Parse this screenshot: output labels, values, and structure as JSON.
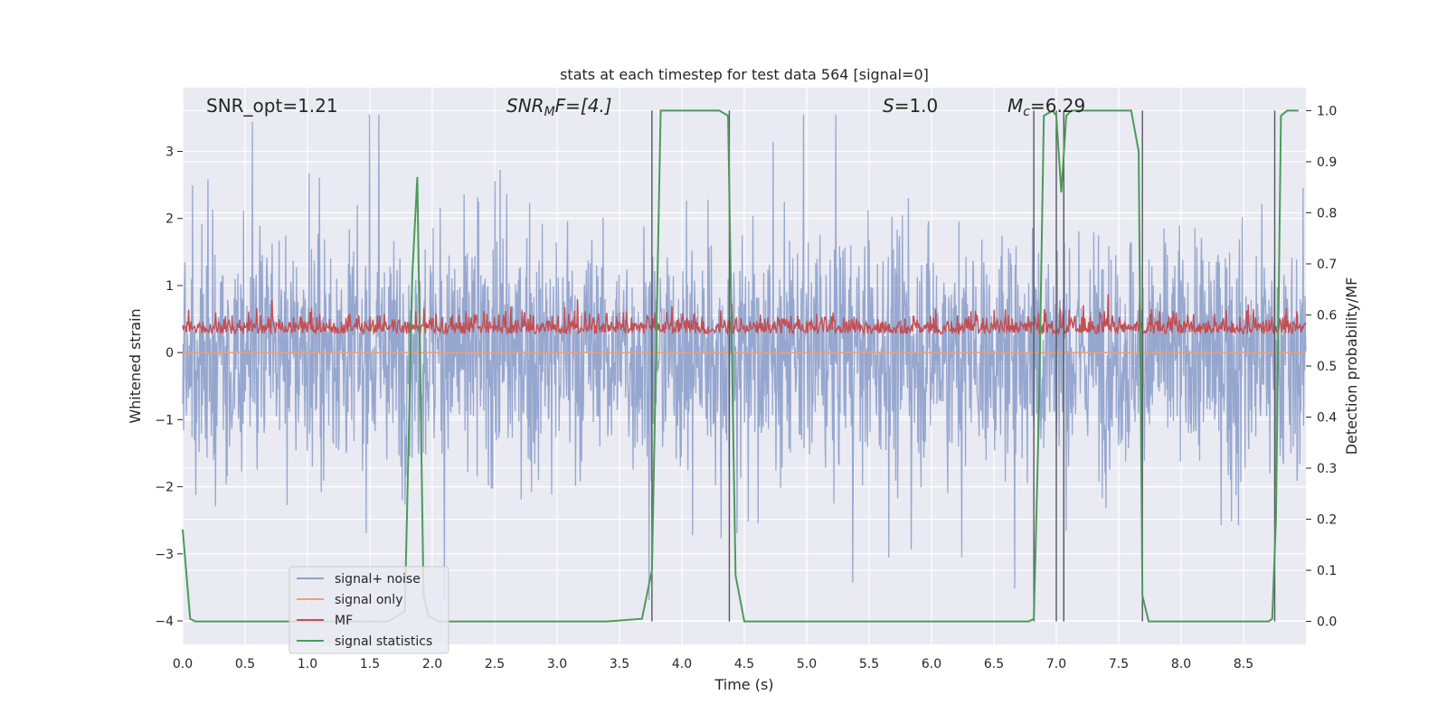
{
  "chart_data": {
    "type": "line",
    "title": "stats at each timestep for test data 564 [signal=0]",
    "xlabel": "Time (s)",
    "ylabel_left": "Whitened strain",
    "ylabel_right": "Detection probability/MF",
    "xlim": [
      0.0,
      9.0
    ],
    "ylim_left": [
      -4.35,
      3.95
    ],
    "ylim_right": [
      -0.045,
      1.045
    ],
    "xticks": [
      "0.0",
      "0.5",
      "1.0",
      "1.5",
      "2.0",
      "2.5",
      "3.0",
      "3.5",
      "4.0",
      "4.5",
      "5.0",
      "5.5",
      "6.0",
      "6.5",
      "7.0",
      "7.5",
      "8.0",
      "8.5"
    ],
    "xtick_values": [
      0.0,
      0.5,
      1.0,
      1.5,
      2.0,
      2.5,
      3.0,
      3.5,
      4.0,
      4.5,
      5.0,
      5.5,
      6.0,
      6.5,
      7.0,
      7.5,
      8.0,
      8.5
    ],
    "yticks_left": [
      "−4",
      "−3",
      "−2",
      "−1",
      "0",
      "1",
      "2",
      "3"
    ],
    "ytick_values_left": [
      -4,
      -3,
      -2,
      -1,
      0,
      1,
      2,
      3
    ],
    "yticks_right": [
      "0.0",
      "0.1",
      "0.2",
      "0.3",
      "0.4",
      "0.5",
      "0.6",
      "0.7",
      "0.8",
      "0.9",
      "1.0"
    ],
    "ytick_values_right": [
      0.0,
      0.1,
      0.2,
      0.3,
      0.4,
      0.5,
      0.6,
      0.7,
      0.8,
      0.9,
      1.0
    ],
    "grid": true,
    "legend_position": "lower-left",
    "annotations": {
      "snr_opt": "SNR_opt=1.21",
      "snr_mf_main": "SNR",
      "snr_mf_sub": "M",
      "snr_mf_rest": "F=[4.]",
      "s_main": "S",
      "s_rest": "=1.0",
      "mc_main": "M",
      "mc_sub": "c",
      "mc_rest": "=6.29"
    },
    "series": [
      {
        "name": "signal+ noise",
        "color": "#8da0cb",
        "noise_band": [
          -1.6,
          1.8
        ],
        "peak_range": [
          -4.0,
          3.55
        ]
      },
      {
        "name": "signal only",
        "color": "#e8a07a",
        "values_constant": 0.0
      },
      {
        "name": "MF",
        "color": "#c44e52",
        "band": [
          0.0,
          0.9
        ]
      },
      {
        "name": "signal statistics",
        "color": "#4c9a5a",
        "axis": "right",
        "x": [
          0.0,
          0.06,
          0.1,
          0.2,
          0.6,
          1.2,
          1.65,
          1.78,
          1.84,
          1.88,
          1.93,
          1.97,
          2.05,
          3.4,
          3.68,
          3.76,
          3.83,
          4.3,
          4.37,
          4.43,
          4.5,
          6.78,
          6.82,
          6.86,
          6.9,
          6.97,
          7.0,
          7.04,
          7.08,
          7.12,
          7.2,
          7.6,
          7.66,
          7.69,
          7.74,
          8.7,
          8.73,
          8.76,
          8.8,
          8.85,
          8.94
        ],
        "y": [
          0.18,
          0.005,
          0.0,
          0.0,
          0.0,
          0.0,
          0.0,
          0.02,
          0.68,
          0.87,
          0.05,
          0.01,
          0.0,
          0.0,
          0.005,
          0.1,
          1.0,
          1.0,
          0.99,
          0.09,
          0.0,
          0.0,
          0.005,
          0.4,
          0.99,
          1.0,
          0.99,
          0.84,
          0.99,
          1.0,
          1.0,
          1.0,
          0.92,
          0.05,
          0.0,
          0.0,
          0.005,
          0.2,
          0.99,
          1.0,
          1.0
        ]
      }
    ],
    "vertical_lines": [
      3.76,
      4.38,
      6.82,
      7.0,
      7.06,
      7.69,
      8.75
    ],
    "vline_color": "#55585e"
  }
}
